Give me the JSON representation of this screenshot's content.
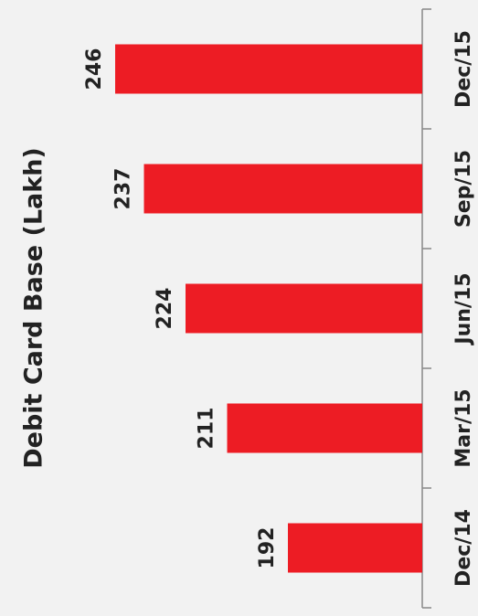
{
  "chart_data": {
    "type": "bar",
    "title": "Debit Card Base (Lakh)",
    "categories": [
      "Dec/14",
      "Mar/15",
      "Jun/15",
      "Sep/15",
      "Dec/15"
    ],
    "values": [
      192,
      211,
      224,
      237,
      246
    ],
    "color": "#ed1c24",
    "ylim": [
      150,
      250
    ]
  }
}
